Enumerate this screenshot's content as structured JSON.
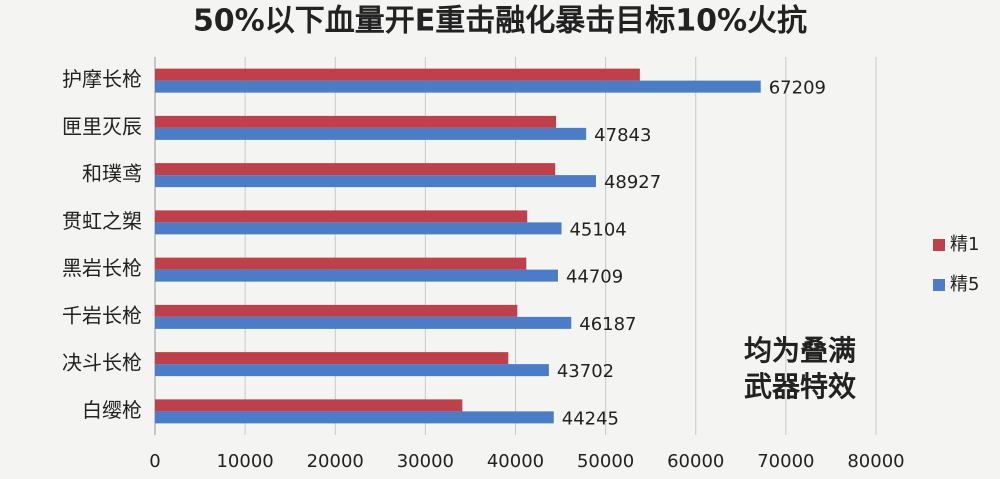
{
  "chart_data": {
    "type": "bar",
    "orientation": "horizontal",
    "title": "50%以下血量开E重击融化暴击目标10%火抗",
    "categories": [
      "护摩长枪",
      "匣里灭辰",
      "和璞鸢",
      "贯虹之槊",
      "黑岩长枪",
      "千岩长枪",
      "决斗长枪",
      "白缨枪"
    ],
    "series": [
      {
        "name": "精1",
        "color": "#c0404a",
        "values": [
          53800,
          44500,
          44400,
          41300,
          41200,
          40200,
          39200,
          34100
        ]
      },
      {
        "name": "精5",
        "color": "#4a7cc8",
        "values": [
          67209,
          47843,
          48927,
          45104,
          44709,
          46187,
          43702,
          44245
        ],
        "show_labels": true
      }
    ],
    "xlim": [
      0,
      80000
    ],
    "xticks": [
      0,
      10000,
      20000,
      30000,
      40000,
      50000,
      60000,
      70000,
      80000
    ],
    "grid": true,
    "legend": "right",
    "annotation": [
      "均为叠满",
      "武器特效"
    ]
  }
}
